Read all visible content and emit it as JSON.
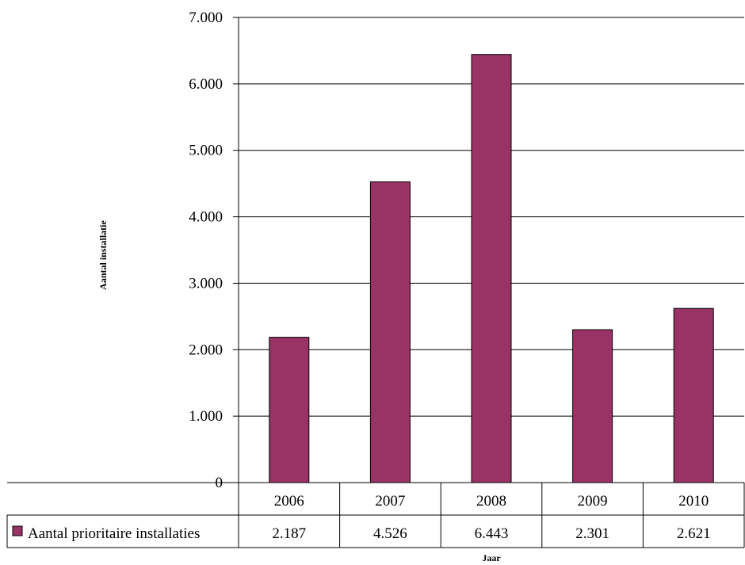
{
  "chart_data": {
    "type": "bar",
    "categories": [
      "2006",
      "2007",
      "2008",
      "2009",
      "2010"
    ],
    "series": [
      {
        "name": "Aantal prioritaire installaties",
        "values": [
          2187,
          4526,
          6443,
          2301,
          2621
        ],
        "value_labels": [
          "2.187",
          "4.526",
          "6.443",
          "2.301",
          "2.621"
        ],
        "color": "#993366"
      }
    ],
    "xlabel": "Jaar",
    "ylabel": "Aantal installatie",
    "ylim": [
      0,
      7000
    ],
    "yticks": [
      0,
      1000,
      2000,
      3000,
      4000,
      5000,
      6000,
      7000
    ],
    "ytick_labels": [
      "0",
      "1.000",
      "2.000",
      "3.000",
      "4.000",
      "5.000",
      "6.000",
      "7.000"
    ],
    "grid": true,
    "legend": "data-table"
  }
}
